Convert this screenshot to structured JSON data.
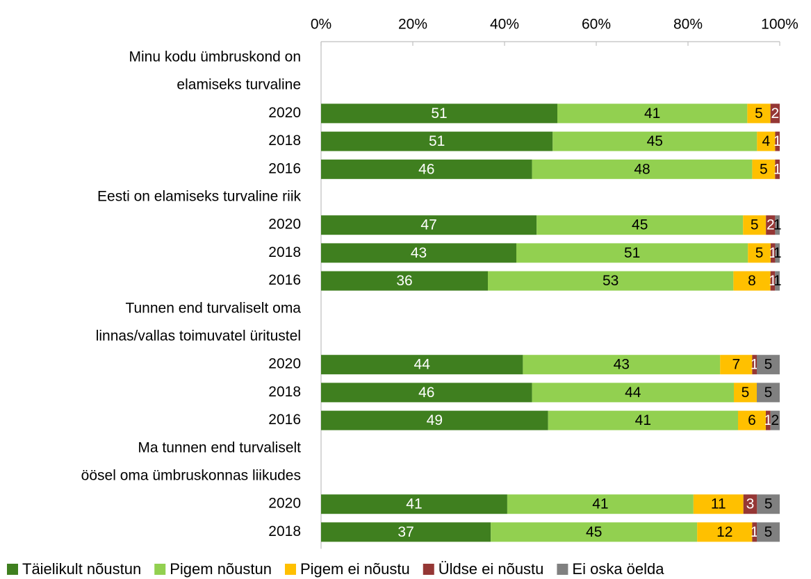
{
  "chart_data": {
    "type": "bar",
    "orientation": "horizontal",
    "stacked": "percent",
    "xlim": [
      0,
      100
    ],
    "x_ticks": [
      "0%",
      "20%",
      "40%",
      "60%",
      "80%",
      "100%"
    ],
    "x_axis_position": "top",
    "grid": false,
    "legend_position": "bottom",
    "series": [
      {
        "name": "Täielikult nõustun",
        "color": "#3f7f1f",
        "label_color": "#ffffff"
      },
      {
        "name": "Pigem nõustun",
        "color": "#92d050",
        "label_color": "#000000"
      },
      {
        "name": "Pigem ei nõustu",
        "color": "#ffc000",
        "label_color": "#000000"
      },
      {
        "name": "Üldse ei nõustu",
        "color": "#953735",
        "label_color": "#ffffff"
      },
      {
        "name": "Ei oska öelda",
        "color": "#808080",
        "label_color": "#000000"
      }
    ],
    "groups": [
      {
        "title_lines": [
          "Minu kodu ümbruskond on",
          "elamiseks turvaline"
        ],
        "bars": [
          {
            "year": "2020",
            "values": [
              51,
              41,
              5,
              2,
              0
            ]
          },
          {
            "year": "2018",
            "values": [
              51,
              45,
              4,
              1,
              0
            ]
          },
          {
            "year": "2016",
            "values": [
              46,
              48,
              5,
              1,
              0
            ]
          }
        ]
      },
      {
        "title_lines": [
          "Eesti on elamiseks turvaline riik"
        ],
        "bars": [
          {
            "year": "2020",
            "values": [
              47,
              45,
              5,
              2,
              1
            ]
          },
          {
            "year": "2018",
            "values": [
              43,
              51,
              5,
              1,
              1
            ]
          },
          {
            "year": "2016",
            "values": [
              36,
              53,
              8,
              1,
              1
            ]
          }
        ]
      },
      {
        "title_lines": [
          "Tunnen end turvaliselt oma",
          "linnas/vallas toimuvatel üritustel"
        ],
        "bars": [
          {
            "year": "2020",
            "values": [
              44,
              43,
              7,
              1,
              5
            ]
          },
          {
            "year": "2018",
            "values": [
              46,
              44,
              5,
              0,
              5
            ]
          },
          {
            "year": "2016",
            "values": [
              49,
              41,
              6,
              1,
              2
            ]
          }
        ]
      },
      {
        "title_lines": [
          "Ma tunnen end turvaliselt",
          "öösel oma ümbruskonnas liikudes"
        ],
        "bars": [
          {
            "year": "2020",
            "values": [
              41,
              41,
              11,
              3,
              5
            ]
          },
          {
            "year": "2018",
            "values": [
              37,
              45,
              12,
              1,
              5
            ]
          }
        ]
      }
    ]
  }
}
